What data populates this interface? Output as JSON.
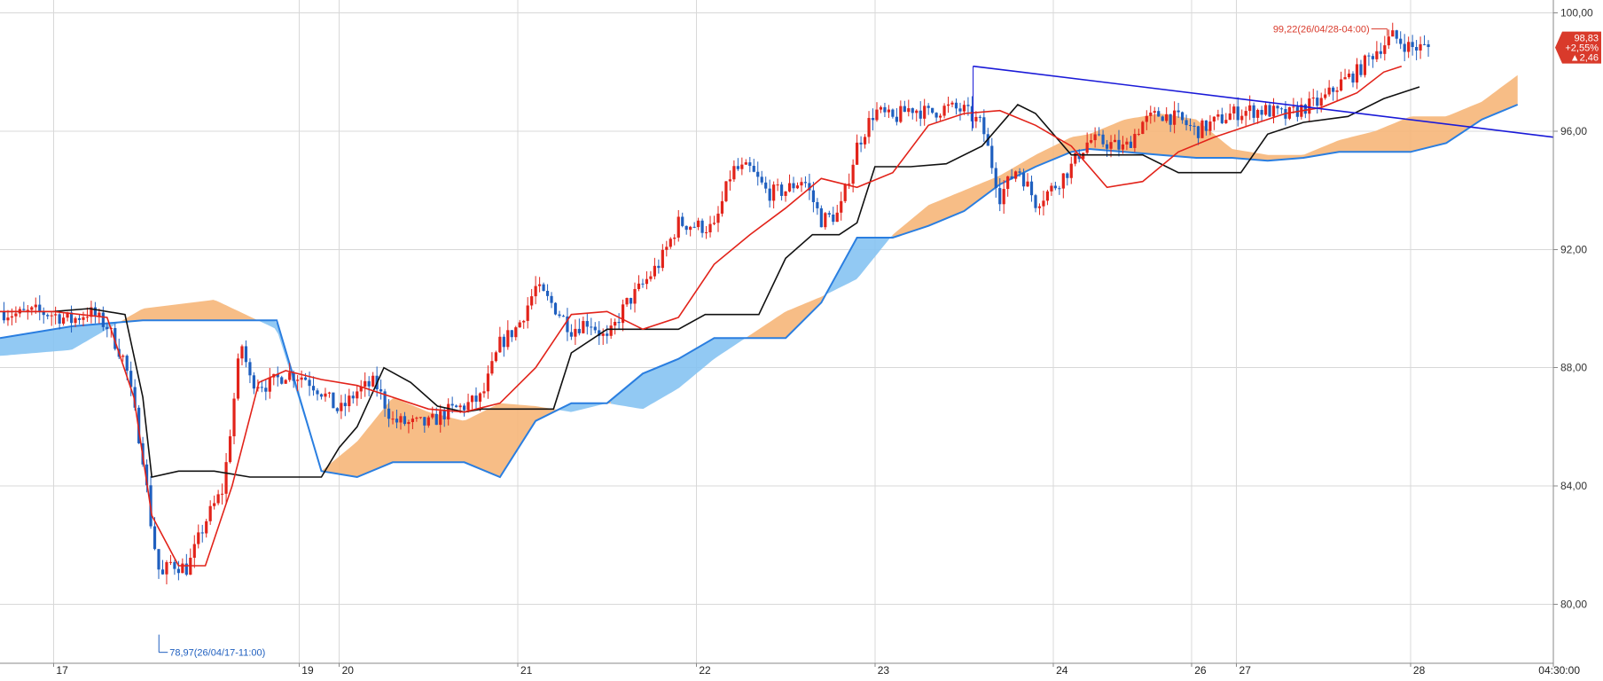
{
  "chart_data": {
    "type": "line",
    "title": "",
    "xlabel": "",
    "ylabel": "",
    "ylim": [
      78.0,
      100.2
    ],
    "grid": true,
    "y_ticks": [
      "100,00",
      "96,00",
      "92,00",
      "88,00",
      "84,00",
      "80,00"
    ],
    "y_tick_values": [
      100,
      96,
      92,
      88,
      84,
      80
    ],
    "x_ticks": [
      "17",
      "19",
      "20",
      "21",
      "22",
      "23",
      "24",
      "26",
      "27",
      "28",
      "04:30:00"
    ],
    "x_tick_days": [
      0.0,
      2.75,
      3.2,
      5.2,
      7.2,
      9.2,
      11.2,
      12.75,
      13.25,
      15.2,
      16.8
    ],
    "x_domain_days": [
      -0.6,
      16.8
    ],
    "last_price": "98,83",
    "change_pct": "+2,55%",
    "change_abs": "▲2,46",
    "high_label": "99,22(26/04/28-04:00)",
    "low_label": "78,97(26/04/17-11:00)",
    "high_point": {
      "day": 14.9,
      "price": 99.22
    },
    "low_point": {
      "day": 1.2,
      "price": 78.97
    },
    "trendline": {
      "x": [
        10.3,
        16.8
      ],
      "y": [
        98.2,
        95.8
      ]
    },
    "colors": {
      "up_candle": "#e2231a",
      "down_candle": "#1f5fbf",
      "tenkan": "#e2231a",
      "kijun": "#111111",
      "cloud_bull": "#f6b679",
      "cloud_bear": "#86c3f2",
      "span_line": "#2a7ee0",
      "trendline": "#1a1ad8",
      "price_box": "#d93a2b"
    },
    "series": [
      {
        "key": "close",
        "x": [
          -0.6,
          -0.4,
          -0.2,
          0.0,
          0.2,
          0.4,
          0.6,
          0.8,
          1.0,
          1.1,
          1.2,
          1.3,
          1.5,
          1.7,
          1.9,
          2.1,
          2.2,
          2.4,
          2.6,
          2.8,
          3.0,
          3.2,
          3.4,
          3.6,
          3.8,
          4.0,
          4.2,
          4.4,
          4.6,
          4.8,
          5.0,
          5.2,
          5.4,
          5.6,
          5.8,
          6.0,
          6.2,
          6.4,
          6.6,
          6.8,
          7.0,
          7.2,
          7.4,
          7.6,
          7.8,
          8.0,
          8.2,
          8.4,
          8.6,
          8.8,
          9.0,
          9.2,
          9.4,
          9.6,
          9.8,
          10.0,
          10.2,
          10.4,
          10.6,
          10.8,
          11.0,
          11.2,
          11.4,
          11.5,
          11.6,
          11.8,
          12.0,
          12.2,
          12.4,
          12.6,
          12.8,
          13.0,
          13.2,
          13.4,
          13.6,
          13.8,
          14.0,
          14.2,
          14.4,
          14.6,
          14.8,
          15.0,
          15.2,
          15.4
        ],
        "y": [
          89.9,
          89.8,
          89.9,
          89.8,
          89.6,
          89.9,
          89.4,
          88.2,
          85.0,
          82.5,
          80.8,
          81.4,
          81.2,
          82.8,
          83.9,
          88.9,
          87.6,
          87.4,
          87.8,
          87.7,
          87.2,
          86.5,
          87.2,
          87.5,
          86.2,
          86.1,
          86.1,
          86.5,
          86.7,
          87.0,
          88.8,
          89.4,
          90.7,
          90.1,
          89.3,
          89.6,
          88.9,
          90.1,
          90.8,
          91.6,
          92.9,
          92.8,
          92.7,
          94.7,
          94.7,
          93.9,
          94.0,
          94.4,
          93.0,
          93.2,
          95.5,
          96.7,
          96.4,
          96.8,
          96.6,
          96.8,
          96.7,
          96.2,
          93.8,
          94.8,
          93.6,
          94.1,
          94.8,
          95.3,
          95.7,
          95.6,
          95.4,
          96.3,
          96.6,
          96.4,
          96.0,
          96.3,
          96.6,
          96.7,
          96.7,
          96.5,
          96.8,
          97.0,
          97.6,
          98.0,
          98.7,
          99.2,
          98.83,
          98.83
        ]
      },
      {
        "key": "tenkan",
        "x": [
          -0.6,
          0.0,
          0.6,
          0.9,
          1.1,
          1.4,
          1.7,
          2.0,
          2.3,
          2.6,
          3.0,
          3.4,
          3.8,
          4.2,
          4.6,
          5.0,
          5.4,
          5.8,
          6.2,
          6.6,
          7.0,
          7.4,
          7.8,
          8.2,
          8.6,
          9.0,
          9.4,
          9.8,
          10.2,
          10.6,
          11.0,
          11.4,
          11.8,
          12.2,
          12.6,
          13.0,
          13.4,
          13.8,
          14.2,
          14.6,
          14.9,
          15.1
        ],
        "y": [
          89.9,
          89.9,
          89.7,
          87.0,
          83.0,
          81.3,
          81.3,
          84.0,
          87.5,
          87.9,
          87.6,
          87.4,
          87.0,
          86.6,
          86.5,
          86.8,
          88.0,
          89.8,
          89.9,
          89.3,
          89.7,
          91.5,
          92.5,
          93.4,
          94.4,
          94.1,
          94.6,
          96.2,
          96.6,
          96.7,
          96.2,
          95.5,
          94.1,
          94.3,
          95.3,
          95.8,
          96.2,
          96.6,
          96.8,
          97.3,
          98.0,
          98.2
        ]
      },
      {
        "key": "kijun",
        "x": [
          -0.6,
          0.0,
          0.4,
          0.8,
          1.0,
          1.1,
          1.4,
          1.8,
          2.2,
          2.6,
          3.0,
          3.2,
          3.4,
          3.7,
          4.0,
          4.3,
          4.6,
          4.8,
          5.2,
          5.6,
          5.8,
          6.2,
          6.6,
          7.0,
          7.3,
          7.6,
          7.9,
          8.2,
          8.5,
          8.8,
          9.0,
          9.2,
          9.6,
          10.0,
          10.4,
          10.8,
          11.0,
          11.4,
          11.8,
          12.2,
          12.6,
          13.0,
          13.3,
          13.6,
          14.0,
          14.5,
          14.9,
          15.3
        ],
        "y": [
          89.9,
          89.9,
          90.0,
          89.8,
          87.0,
          84.3,
          84.5,
          84.5,
          84.3,
          84.3,
          84.3,
          85.3,
          86.0,
          88.0,
          87.5,
          86.7,
          86.5,
          86.6,
          86.6,
          86.6,
          88.5,
          89.3,
          89.3,
          89.3,
          89.8,
          89.8,
          89.8,
          91.7,
          92.5,
          92.5,
          92.9,
          94.8,
          94.8,
          94.9,
          95.5,
          96.9,
          96.6,
          95.2,
          95.2,
          95.2,
          94.6,
          94.6,
          94.6,
          95.9,
          96.3,
          96.5,
          97.1,
          97.5
        ]
      },
      {
        "key": "span_a",
        "x": [
          -0.6,
          0.2,
          1.0,
          1.8,
          2.5,
          3.0,
          3.4,
          3.8,
          4.2,
          4.6,
          5.0,
          5.4,
          5.8,
          6.2,
          6.6,
          7.0,
          7.4,
          7.8,
          8.2,
          8.6,
          9.0,
          9.4,
          9.8,
          10.2,
          10.6,
          11.0,
          11.4,
          11.6,
          12.0,
          12.4,
          12.8,
          13.2,
          13.6,
          14.0,
          14.4,
          14.8,
          15.2,
          15.6,
          16.0,
          16.4
        ],
        "y": [
          88.4,
          88.6,
          90.0,
          90.3,
          89.3,
          84.5,
          85.5,
          87.0,
          86.5,
          86.2,
          86.8,
          86.7,
          86.5,
          86.8,
          86.6,
          87.3,
          88.3,
          89.1,
          89.9,
          90.4,
          91.0,
          92.5,
          93.5,
          94.0,
          94.5,
          95.2,
          95.8,
          95.9,
          96.4,
          96.6,
          96.4,
          95.4,
          95.2,
          95.2,
          95.7,
          96.0,
          96.5,
          96.5,
          97.0,
          97.9
        ]
      },
      {
        "key": "span_b",
        "x": [
          -0.6,
          0.2,
          1.0,
          1.8,
          2.5,
          3.0,
          3.4,
          3.8,
          4.2,
          4.6,
          5.0,
          5.4,
          5.8,
          6.2,
          6.6,
          7.0,
          7.4,
          7.8,
          8.2,
          8.6,
          9.0,
          9.4,
          9.8,
          10.2,
          10.6,
          11.0,
          11.4,
          11.6,
          12.0,
          12.4,
          12.8,
          13.2,
          13.6,
          14.0,
          14.4,
          14.8,
          15.2,
          15.6,
          16.0,
          16.4
        ],
        "y": [
          89.0,
          89.4,
          89.6,
          89.6,
          89.6,
          84.5,
          84.3,
          84.8,
          84.8,
          84.8,
          84.3,
          86.2,
          86.8,
          86.8,
          87.8,
          88.3,
          89.0,
          89.0,
          89.0,
          90.2,
          92.4,
          92.4,
          92.8,
          93.3,
          94.2,
          94.8,
          95.3,
          95.4,
          95.3,
          95.2,
          95.1,
          95.1,
          95.0,
          95.1,
          95.3,
          95.3,
          95.3,
          95.6,
          96.4,
          96.9
        ]
      }
    ]
  }
}
